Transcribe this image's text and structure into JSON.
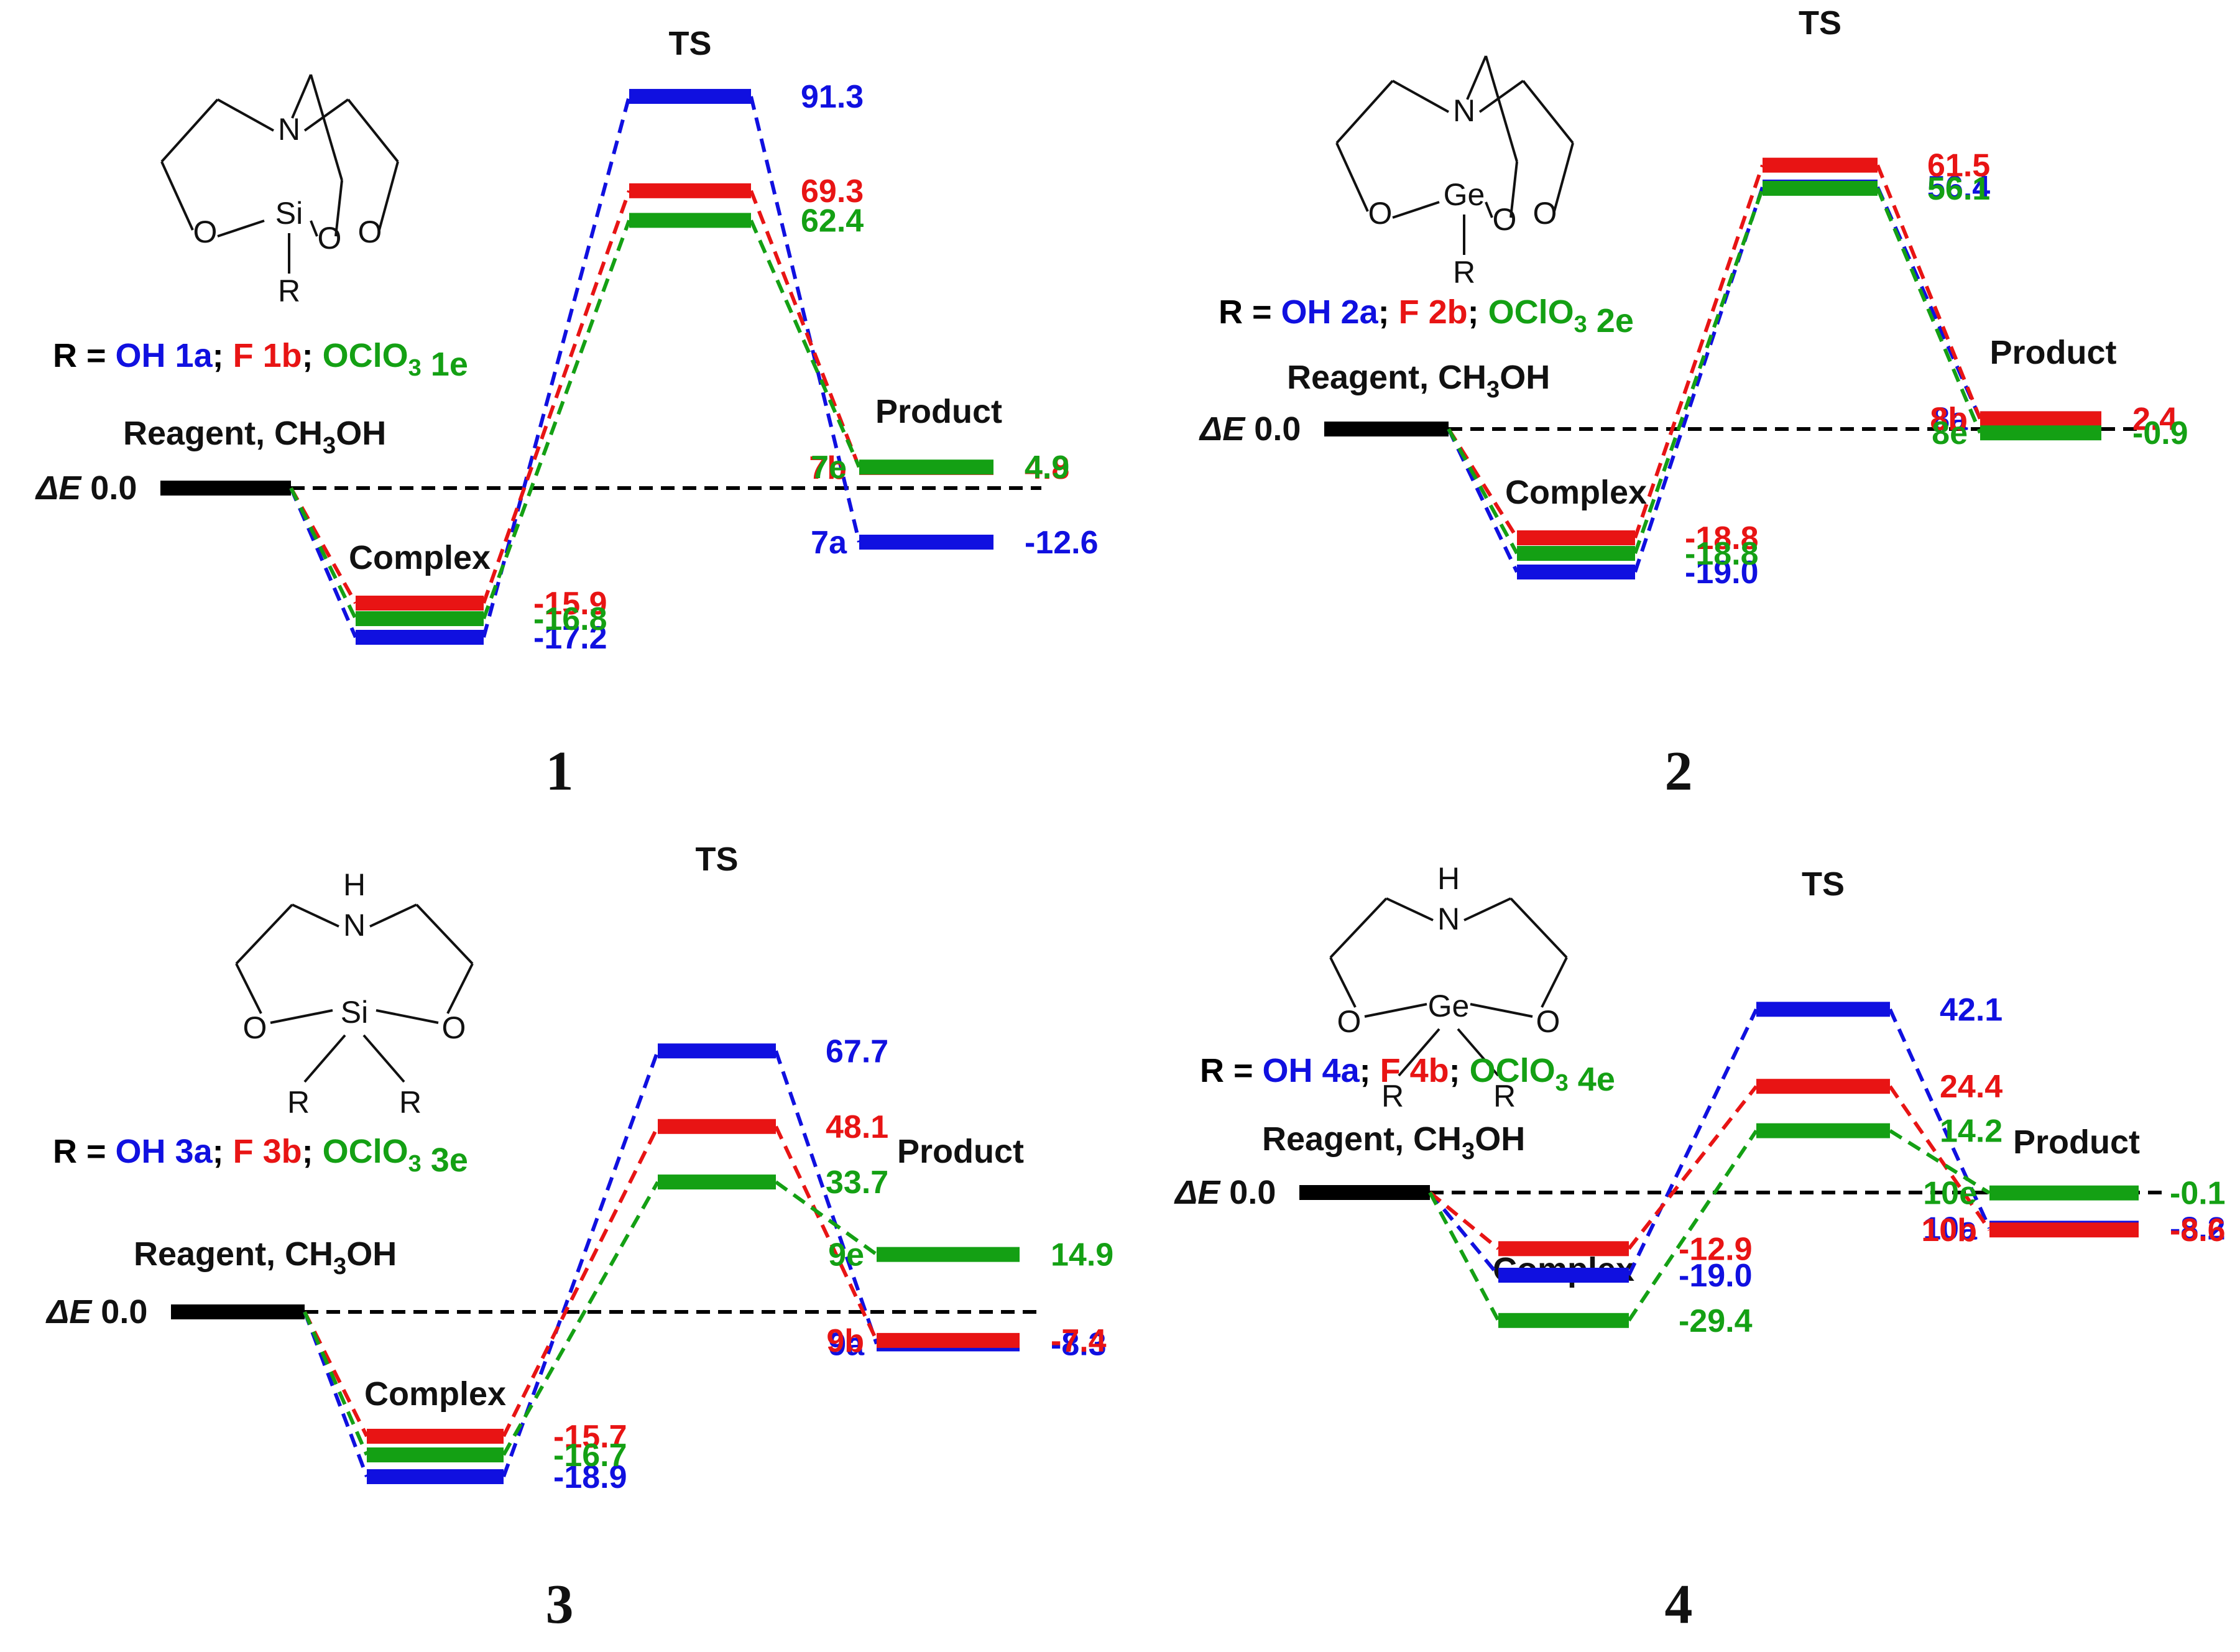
{
  "colors": {
    "blue": "#1010e0",
    "red": "#e81414",
    "green": "#14a014",
    "black": "#000000"
  },
  "chart_data": [
    {
      "type": "energy-diagram",
      "panel": "1",
      "ylabel": "ΔE",
      "reagent_label": "Reagent, CH",
      "reagent_sub": "3",
      "reagent_suffix": "OH",
      "reagent_value": "0.0",
      "complex_label": "Complex",
      "ts_label": "TS",
      "product_label": "Product",
      "structure": {
        "atoms": [
          "N",
          "Si",
          "O",
          "O",
          "O",
          "R"
        ]
      },
      "r_legend": [
        {
          "text": "R = ",
          "color": "black"
        },
        {
          "text": "OH 1a",
          "color": "blue"
        },
        {
          "text": "; ",
          "color": "black"
        },
        {
          "text": "F 1b",
          "color": "red"
        },
        {
          "text": "; ",
          "color": "black"
        },
        {
          "text": "OClO",
          "color": "green",
          "sub": "3"
        },
        {
          "text": " 1e",
          "color": "green"
        }
      ],
      "series": [
        {
          "name": "a",
          "color": "blue",
          "complex": -17.2,
          "ts": 91.3,
          "product": -12.6,
          "product_label": "7a"
        },
        {
          "name": "b",
          "color": "red",
          "complex": -15.9,
          "ts": 69.3,
          "product": 4.8,
          "product_label": "7b"
        },
        {
          "name": "e",
          "color": "green",
          "complex": -16.8,
          "ts": 62.4,
          "product": 4.9,
          "product_label": "7e"
        }
      ]
    },
    {
      "type": "energy-diagram",
      "panel": "2",
      "ylabel": "ΔE",
      "reagent_label": "Reagent, CH",
      "reagent_sub": "3",
      "reagent_suffix": "OH",
      "reagent_value": "0.0",
      "complex_label": "Complex",
      "ts_label": "TS",
      "product_label": "Product",
      "structure": {
        "atoms": [
          "N",
          "Ge",
          "O",
          "O",
          "O",
          "R"
        ]
      },
      "r_legend": [
        {
          "text": "R = ",
          "color": "black"
        },
        {
          "text": "OH 2a",
          "color": "blue"
        },
        {
          "text": "; ",
          "color": "black"
        },
        {
          "text": "F 2b",
          "color": "red"
        },
        {
          "text": "; ",
          "color": "black"
        },
        {
          "text": "OClO",
          "color": "green",
          "sub": "3"
        },
        {
          "text": " 2e",
          "color": "green"
        }
      ],
      "series": [
        {
          "name": "a",
          "color": "blue",
          "complex": -19.0,
          "ts": 56.4,
          "product": 2.4,
          "product_label": "8a"
        },
        {
          "name": "b",
          "color": "red",
          "complex": -18.8,
          "ts": 61.5,
          "product": 2.4,
          "product_label": "8b"
        },
        {
          "name": "e",
          "color": "green",
          "complex": -18.8,
          "ts": 56.1,
          "product": -0.9,
          "product_label": "8e"
        }
      ]
    },
    {
      "type": "energy-diagram",
      "panel": "3",
      "ylabel": "ΔE",
      "reagent_label": "Reagent, CH",
      "reagent_sub": "3",
      "reagent_suffix": "OH",
      "reagent_value": "0.0",
      "complex_label": "Complex",
      "ts_label": "TS",
      "product_label": "Product",
      "structure": {
        "atoms": [
          "H",
          "N",
          "Si",
          "O",
          "O",
          "R",
          "R"
        ]
      },
      "r_legend": [
        {
          "text": "R = ",
          "color": "black"
        },
        {
          "text": "OH 3a",
          "color": "blue"
        },
        {
          "text": "; ",
          "color": "black"
        },
        {
          "text": "F 3b",
          "color": "red"
        },
        {
          "text": "; ",
          "color": "black"
        },
        {
          "text": "OClO",
          "color": "green",
          "sub": "3"
        },
        {
          "text": " 3e",
          "color": "green"
        }
      ],
      "series": [
        {
          "name": "a",
          "color": "blue",
          "complex": -18.9,
          "ts": 67.7,
          "product": -8.3,
          "product_label": "9a"
        },
        {
          "name": "b",
          "color": "red",
          "complex": -15.7,
          "ts": 48.1,
          "product": -7.4,
          "product_label": "9b"
        },
        {
          "name": "e",
          "color": "green",
          "complex": -16.7,
          "ts": 33.7,
          "product": 14.9,
          "product_label": "9e"
        }
      ]
    },
    {
      "type": "energy-diagram",
      "panel": "4",
      "ylabel": "ΔE",
      "reagent_label": "Reagent, CH",
      "reagent_sub": "3",
      "reagent_suffix": "OH",
      "reagent_value": "0.0",
      "complex_label": "Complex",
      "ts_label": "TS",
      "product_label": "Product",
      "structure": {
        "atoms": [
          "H",
          "N",
          "Ge",
          "O",
          "O",
          "R",
          "R"
        ]
      },
      "r_legend": [
        {
          "text": "R = ",
          "color": "black"
        },
        {
          "text": "OH 4a",
          "color": "blue"
        },
        {
          "text": "; ",
          "color": "black"
        },
        {
          "text": "F 4b",
          "color": "red"
        },
        {
          "text": "; ",
          "color": "black"
        },
        {
          "text": "OClO",
          "color": "green",
          "sub": "3"
        },
        {
          "text": " 4e",
          "color": "green"
        }
      ],
      "series": [
        {
          "name": "a",
          "color": "blue",
          "complex": -19.0,
          "ts": 42.1,
          "product": -8.2,
          "product_label": "10a"
        },
        {
          "name": "b",
          "color": "red",
          "complex": -12.9,
          "ts": 24.4,
          "product": -8.6,
          "product_label": "10b"
        },
        {
          "name": "e",
          "color": "green",
          "complex": -29.4,
          "ts": 14.2,
          "product": -0.1,
          "product_label": "10e"
        }
      ]
    }
  ]
}
